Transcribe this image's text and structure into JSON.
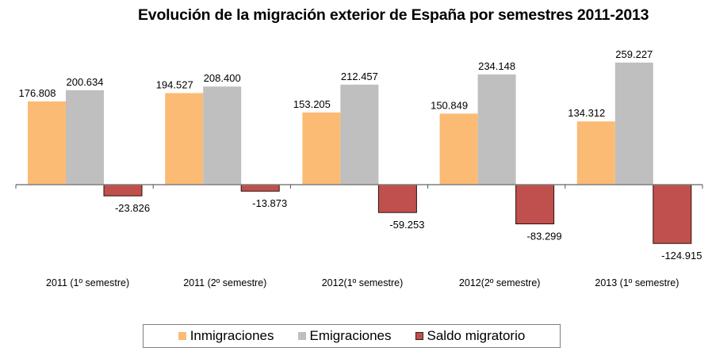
{
  "chart_data": {
    "type": "bar",
    "title": "Evolución de la migración exterior de España por semestres 2011-2013",
    "xlabel": "",
    "ylabel": "",
    "ylim": [
      -140000,
      270000
    ],
    "grid": false,
    "legend_position": "bottom",
    "categories": [
      "2011 (1º semestre)",
      "2011 (2º semestre)",
      "2012(1º semestre)",
      "2012(2º semestre)",
      "2013 (1º semestre)"
    ],
    "series": [
      {
        "name": "Inmigraciones",
        "color": "#fbbb74",
        "values": [
          176808,
          194527,
          153205,
          150849,
          134312
        ],
        "labels": [
          "176.808",
          "194.527",
          "153.205",
          "150.849",
          "134.312"
        ]
      },
      {
        "name": "Emigraciones",
        "color": "#bfbfbf",
        "values": [
          200634,
          208400,
          212457,
          234148,
          259227
        ],
        "labels": [
          "200.634",
          "208.400",
          "212.457",
          "234.148",
          "259.227"
        ]
      },
      {
        "name": "Saldo migratorio",
        "color": "#c0504d",
        "values": [
          -23826,
          -13873,
          -59253,
          -83299,
          -124915
        ],
        "labels": [
          "-23.826",
          "-13.873",
          "-59.253",
          "-83.299",
          "-124.915"
        ]
      }
    ]
  }
}
